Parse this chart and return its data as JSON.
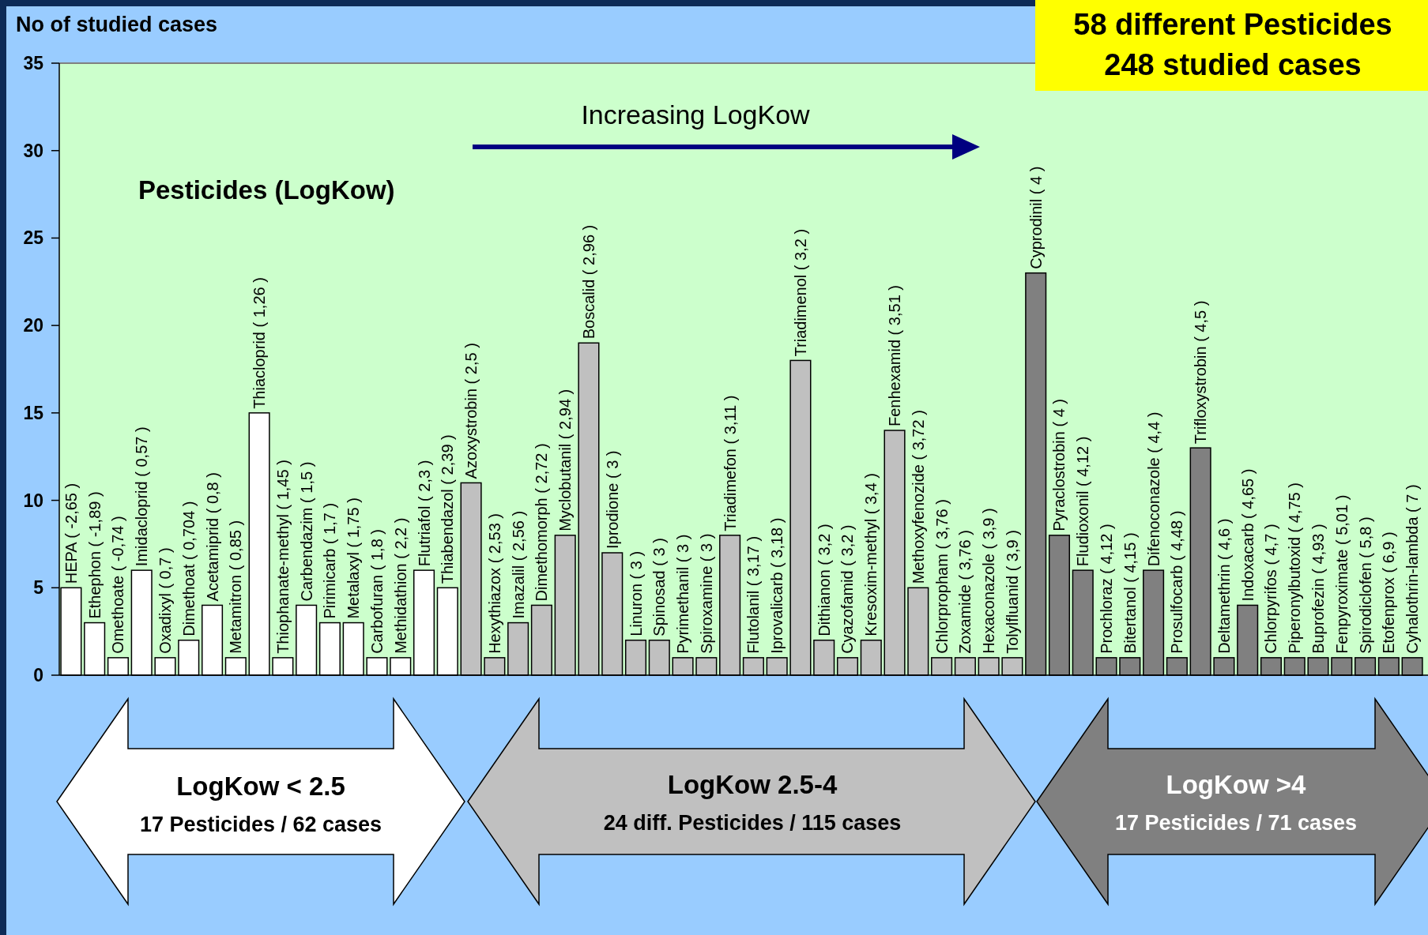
{
  "chart_data": {
    "type": "bar",
    "ylabel": "No of studied cases",
    "categories": [
      "HEPA ( -2,65 )",
      "Ethephon ( -1,89 )",
      "Omethoate ( -0,74 )",
      "Imidacloprid ( 0,57 )",
      "Oxadixyl ( 0,7 )",
      "Dimethoat ( 0,704 )",
      "Acetamiprid ( 0,8 )",
      "Metamitron ( 0,85 )",
      "Thiacloprid ( 1,26 )",
      "Thiophanate-methyl ( 1,45 )",
      "Carbendazim ( 1,5 )",
      "Pirimicarb ( 1,7 )",
      "Metalaxyl ( 1,75 )",
      "Carbofuran ( 1,8 )",
      "Methidathion ( 2,2 )",
      "Flutriafol ( 2,3 )",
      "Thiabendazol ( 2,39 )",
      "Azoxystrobin ( 2,5 )",
      "Hexythiazox ( 2,53 )",
      "Imazalil ( 2,56 )",
      "Dimethomorph ( 2,72 )",
      "Myclobutanil ( 2,94 )",
      "Boscalid ( 2,96 )",
      "Iprodione ( 3 )",
      "Linuron ( 3 )",
      "Spinosad ( 3 )",
      "Pyrimethanil ( 3 )",
      "Spiroxamine ( 3 )",
      "Triadimefon ( 3,11 )",
      "Flutolanil ( 3,17 )",
      "Iprovalicarb ( 3,18 )",
      "Triadimenol ( 3,2 )",
      "Dithianon ( 3,2 )",
      "Cyazofamid ( 3,2 )",
      "Kresoxim-methyl ( 3,4 )",
      "Fenhexamid ( 3,51 )",
      "Methoxyfenozide ( 3,72 )",
      "Chlorpropham ( 3,76 )",
      "Zoxamide ( 3,76 )",
      "Hexaconazole ( 3,9 )",
      "Tolylfluanid ( 3,9 )",
      "Cyprodinil ( 4 )",
      "Pyraclostrobin ( 4 )",
      "Fludioxonil ( 4,12 )",
      "Prochloraz ( 4,12 )",
      "Bitertanol ( 4,15 )",
      "Difenoconazole ( 4,4 )",
      "Prosulfocarb ( 4,48 )",
      "Trifloxystrobin ( 4,5 )",
      "Deltamethrin ( 4,6 )",
      "Indoxacarb ( 4,65 )",
      "Chlorpyrifos ( 4,7 )",
      "Piperonylbutoxid ( 4,75 )",
      "Buprofezin ( 4,93 )",
      "Fenpyroximate ( 5,01 )",
      "Spirodiclofen ( 5,8 )",
      "Etofenprox ( 6,9 )",
      "Cyhalothrin-lambda ( 7 )"
    ],
    "values": [
      5,
      3,
      1,
      6,
      1,
      2,
      4,
      1,
      15,
      1,
      4,
      3,
      3,
      1,
      1,
      6,
      5,
      11,
      1,
      3,
      4,
      8,
      19,
      7,
      2,
      2,
      1,
      1,
      8,
      1,
      1,
      18,
      2,
      1,
      2,
      14,
      5,
      1,
      1,
      1,
      1,
      23,
      8,
      6,
      1,
      1,
      6,
      1,
      13,
      1,
      4,
      1,
      1,
      1,
      1,
      1,
      1,
      1
    ],
    "colors": [
      "#ffffff",
      "#ffffff",
      "#ffffff",
      "#ffffff",
      "#ffffff",
      "#ffffff",
      "#ffffff",
      "#ffffff",
      "#ffffff",
      "#ffffff",
      "#ffffff",
      "#ffffff",
      "#ffffff",
      "#ffffff",
      "#ffffff",
      "#ffffff",
      "#ffffff",
      "#c0c0c0",
      "#c0c0c0",
      "#c0c0c0",
      "#c0c0c0",
      "#c0c0c0",
      "#c0c0c0",
      "#c0c0c0",
      "#c0c0c0",
      "#c0c0c0",
      "#c0c0c0",
      "#c0c0c0",
      "#c0c0c0",
      "#c0c0c0",
      "#c0c0c0",
      "#c0c0c0",
      "#c0c0c0",
      "#c0c0c0",
      "#c0c0c0",
      "#c0c0c0",
      "#c0c0c0",
      "#c0c0c0",
      "#c0c0c0",
      "#c0c0c0",
      "#c0c0c0",
      "#808080",
      "#808080",
      "#808080",
      "#808080",
      "#808080",
      "#808080",
      "#808080",
      "#808080",
      "#808080",
      "#808080",
      "#808080",
      "#808080",
      "#808080",
      "#808080",
      "#808080",
      "#808080",
      "#808080"
    ],
    "ylim": [
      0,
      35
    ],
    "yticks": [
      0,
      5,
      10,
      15,
      20,
      25,
      30,
      35
    ],
    "annotations": [
      "Increasing LogKow",
      "Pesticides (LogKow)",
      "58 different Pesticides",
      "248 studied cases",
      "LogKow < 2.5",
      "17 Pesticides / 62 cases",
      "LogKow 2.5-4",
      "24 diff. Pesticides / 115 cases",
      "LogKow >4",
      "17 Pesticides / 71 cases"
    ]
  }
}
